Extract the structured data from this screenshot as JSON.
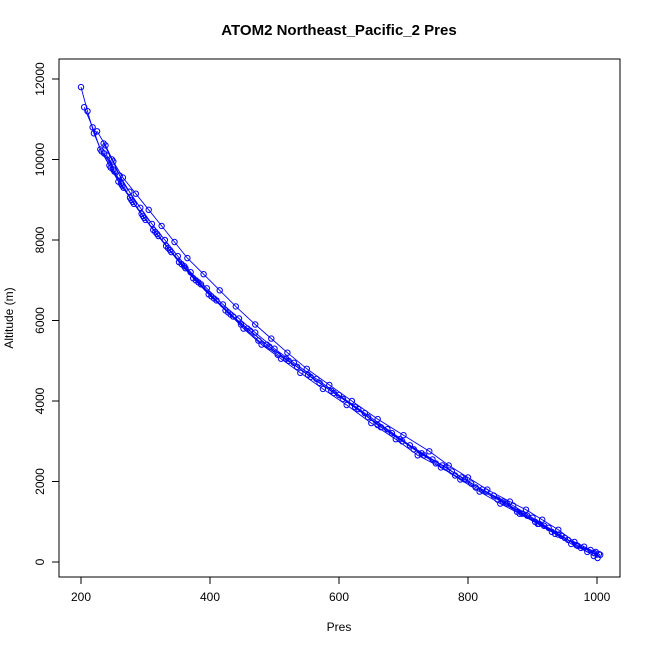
{
  "chart_data": {
    "type": "line",
    "title": "ATOM2 Northeast_Pacific_2 Pres",
    "xlabel": "Pres",
    "ylabel": "Altitude (m)",
    "xlim": [
      200,
      1000
    ],
    "ylim": [
      0,
      12000
    ],
    "xticks": [
      "200",
      "400",
      "600",
      "800",
      "1000"
    ],
    "yticks": [
      "0",
      "2000",
      "4000",
      "6000",
      "8000",
      "10000",
      "12000"
    ],
    "grid": false,
    "marker": "open-circle",
    "colors": {
      "series": "#0000ff",
      "axis": "#000000"
    },
    "series": [
      {
        "x": [
          1001,
          990,
          965,
          940,
          915,
          890,
          865,
          830,
          800,
          770,
          740,
          700,
          660,
          620,
          585,
          550,
          520,
          495,
          470,
          440,
          415,
          390,
          365,
          345,
          325,
          305,
          285,
          265,
          250,
          238,
          225
        ],
        "y": [
          100,
          300,
          500,
          800,
          1050,
          1300,
          1500,
          1800,
          2100,
          2400,
          2750,
          3150,
          3550,
          4000,
          4400,
          4800,
          5200,
          5550,
          5900,
          6350,
          6750,
          7150,
          7550,
          7950,
          8350,
          8750,
          9150,
          9550,
          9950,
          10350,
          10700
        ]
      },
      {
        "x": [
          995,
          975,
          950,
          925,
          900,
          870,
          840,
          805,
          775,
          745,
          710,
          675,
          640,
          600,
          565,
          530,
          500,
          470,
          445,
          420,
          395,
          370,
          350,
          330,
          310,
          292,
          275,
          260,
          248,
          235
        ],
        "y": [
          150,
          350,
          600,
          850,
          1100,
          1400,
          1650,
          1950,
          2250,
          2550,
          2900,
          3300,
          3700,
          4150,
          4550,
          4950,
          5300,
          5700,
          6050,
          6400,
          6800,
          7200,
          7600,
          8000,
          8400,
          8800,
          9200,
          9600,
          10000,
          10400
        ]
      },
      {
        "x": [
          1003,
          985,
          960,
          935,
          908,
          880,
          850,
          818,
          788,
          758,
          722,
          688,
          650,
          612,
          575,
          540,
          510,
          480,
          452,
          428,
          402,
          378,
          356,
          335,
          315,
          296,
          278,
          262,
          246,
          232,
          220,
          210,
          200
        ],
        "y": [
          200,
          250,
          450,
          700,
          950,
          1200,
          1450,
          1750,
          2050,
          2350,
          2650,
          3050,
          3450,
          3900,
          4300,
          4700,
          5050,
          5400,
          5800,
          6200,
          6600,
          7000,
          7400,
          7800,
          8200,
          8600,
          9000,
          9400,
          9800,
          10200,
          10650,
          11200,
          11800
        ]
      },
      {
        "x": [
          998,
          970,
          945,
          918,
          892,
          860,
          828,
          795,
          765,
          732,
          698,
          665,
          630,
          592,
          556,
          522,
          492,
          462,
          436,
          410,
          386,
          362,
          340,
          320,
          300,
          282,
          266,
          252,
          240
        ],
        "y": [
          250,
          400,
          650,
          900,
          1150,
          1450,
          1750,
          2050,
          2350,
          2650,
          3000,
          3350,
          3800,
          4200,
          4600,
          5000,
          5350,
          5750,
          6100,
          6500,
          6900,
          7300,
          7700,
          8100,
          8500,
          8900,
          9300,
          9700,
          10100
        ]
      },
      {
        "x": [
          1005,
          980,
          955,
          930,
          904,
          876,
          846,
          812,
          780,
          750,
          716,
          682,
          645,
          606,
          570,
          535,
          505,
          475,
          448,
          424,
          398,
          374,
          352,
          332,
          312,
          294,
          276,
          258,
          244,
          230,
          218,
          205
        ],
        "y": [
          180,
          380,
          550,
          750,
          1000,
          1250,
          1550,
          1850,
          2150,
          2450,
          2800,
          3200,
          3600,
          4050,
          4450,
          4850,
          5150,
          5500,
          5900,
          6250,
          6650,
          7050,
          7450,
          7850,
          8250,
          8650,
          9050,
          9450,
          9850,
          10250,
          10800,
          11300
        ]
      },
      {
        "x": [
          996,
          968,
          940,
          910,
          884,
          854,
          822,
          790,
          760,
          728,
          694,
          660,
          625,
          588,
          552,
          518,
          488,
          458,
          432,
          406,
          382,
          360,
          338,
          318,
          298,
          280,
          264,
          250,
          236
        ],
        "y": [
          220,
          420,
          680,
          950,
          1200,
          1500,
          1800,
          2100,
          2400,
          2700,
          3050,
          3400,
          3850,
          4250,
          4650,
          5050,
          5400,
          5800,
          6150,
          6550,
          6950,
          7350,
          7750,
          8150,
          8550,
          8950,
          9350,
          9750,
          10150
        ]
      }
    ]
  }
}
